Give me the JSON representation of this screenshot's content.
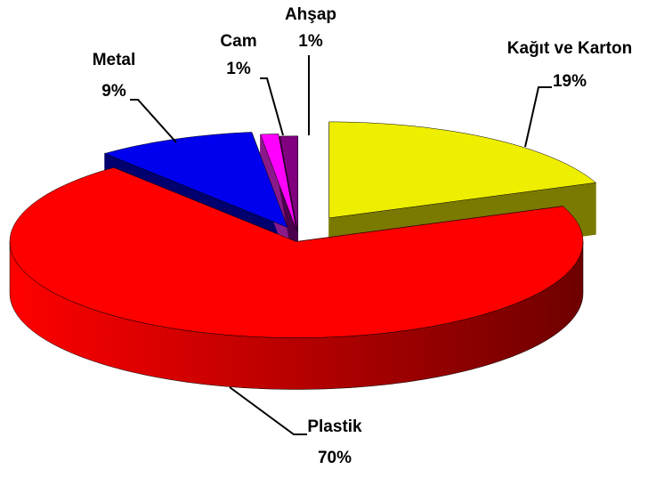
{
  "chart_data": {
    "type": "pie3d",
    "categories": [
      "Kağıt ve Karton",
      "Plastik",
      "Metal",
      "Cam",
      "Ahşap"
    ],
    "values": [
      19,
      70,
      9,
      1,
      1
    ],
    "value_labels": [
      "19%",
      "70%",
      "9%",
      "1%",
      "1%"
    ],
    "colors": [
      "#eeee00",
      "#ff0000",
      "#0000ee",
      "#ff00ff",
      "#800080"
    ],
    "side_colors": [
      "#7a7a00",
      "#6e0000",
      "#00006e",
      "#8a1a8a",
      "#4a004a"
    ]
  }
}
